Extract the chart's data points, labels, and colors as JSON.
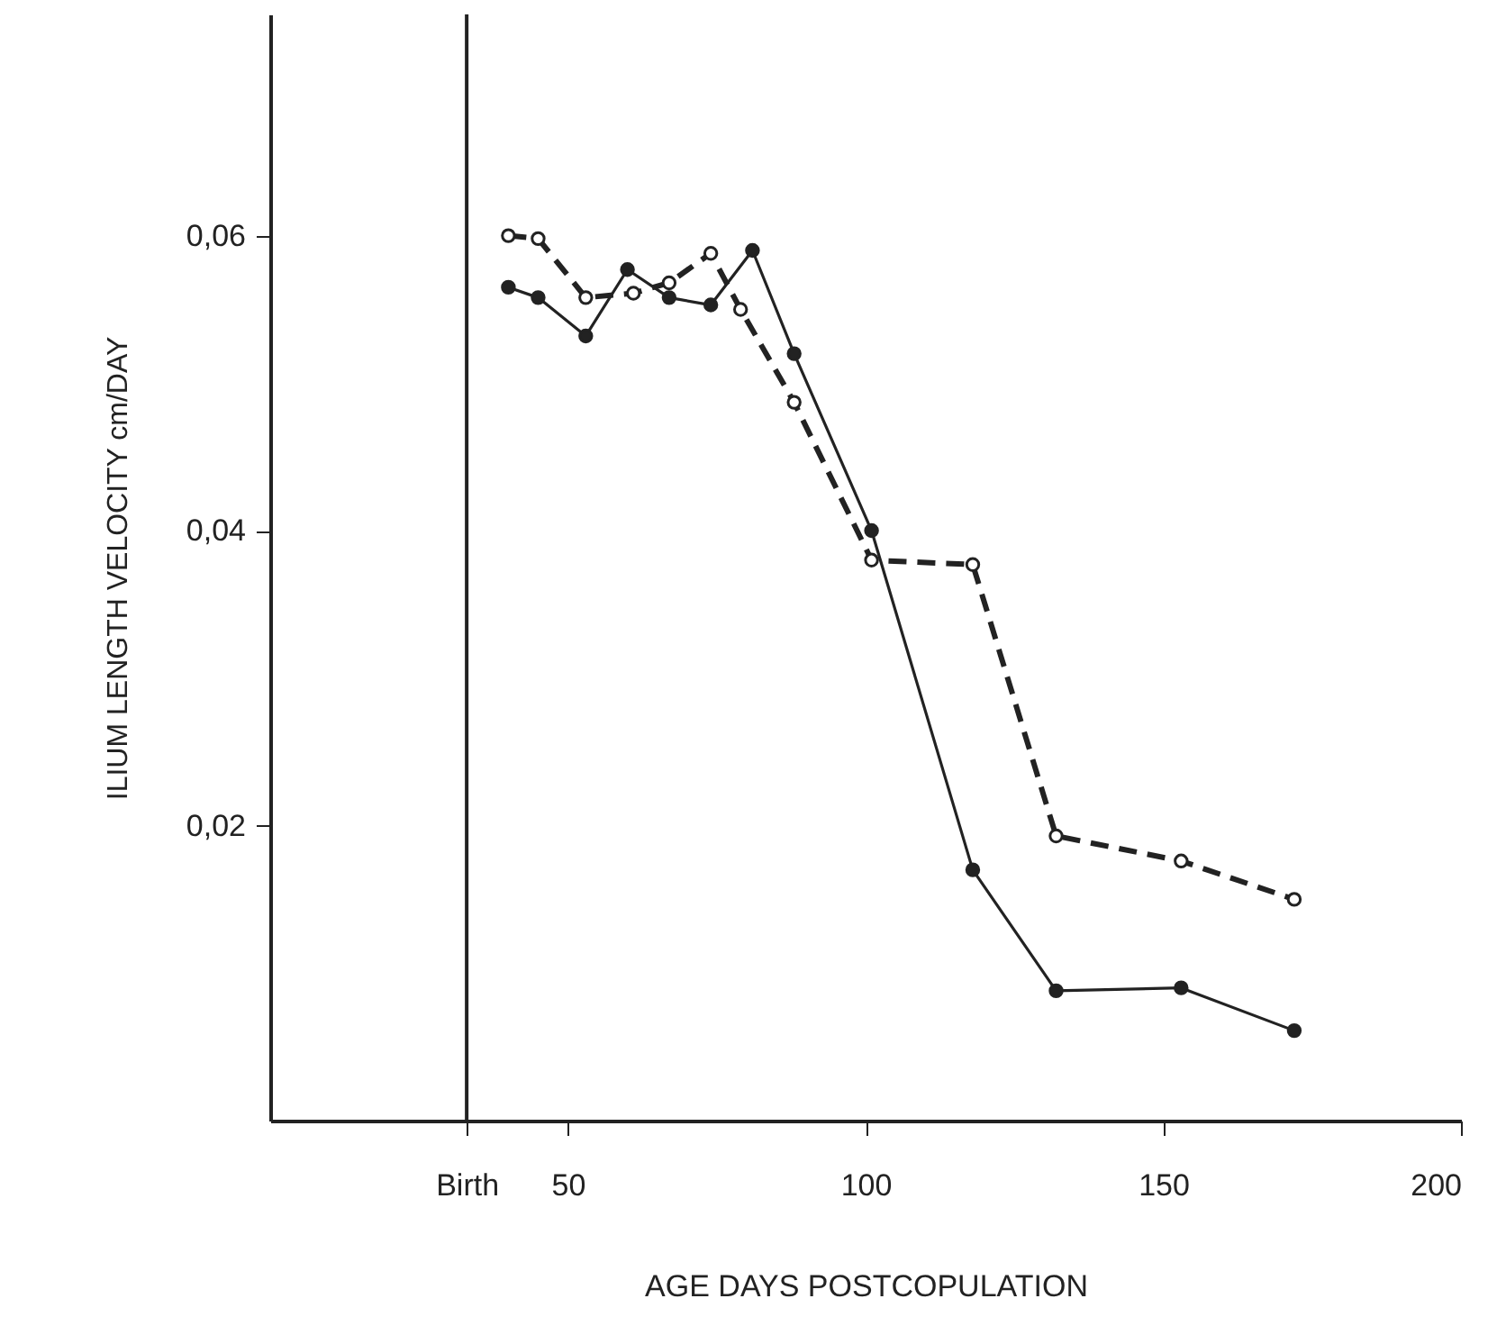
{
  "chart_data": {
    "type": "line",
    "xlabel": "AGE DAYS POSTCOPULATION",
    "ylabel": "ILIUM LENGTH VELOCITY cm/DAY",
    "xlim": [
      0,
      200
    ],
    "ylim": [
      0,
      0.075
    ],
    "xticks": [
      {
        "value": 33,
        "label": "Birth"
      },
      50,
      100,
      150,
      200
    ],
    "yticks": [
      {
        "value": 0.02,
        "label": "0,02"
      },
      {
        "value": 0.04,
        "label": "0,04"
      },
      {
        "value": 0.06,
        "label": "0,06"
      }
    ],
    "grid": false,
    "marker": "circle",
    "ref_lines": [
      {
        "axis": "x",
        "value": 33,
        "color": "#222222"
      }
    ],
    "series": [
      {
        "color": "#222222",
        "line_style": "dashed",
        "x": [
          40,
          45,
          53,
          61,
          67,
          74,
          79,
          88,
          101,
          118,
          132,
          153,
          172
        ],
        "values": [
          0.06,
          0.0598,
          0.0558,
          0.0561,
          0.0568,
          0.0588,
          0.055,
          0.0487,
          0.038,
          0.0377,
          0.0193,
          0.0176,
          0.015
        ]
      },
      {
        "color": "#222222",
        "line_style": "solid",
        "x": [
          40,
          45,
          53,
          60,
          67,
          74,
          81,
          88,
          101,
          118,
          132,
          153,
          172
        ],
        "values": [
          0.0565,
          0.0558,
          0.0532,
          0.0577,
          0.0558,
          0.0553,
          0.059,
          0.052,
          0.04,
          0.017,
          0.0088,
          0.009,
          0.0061
        ]
      }
    ]
  }
}
